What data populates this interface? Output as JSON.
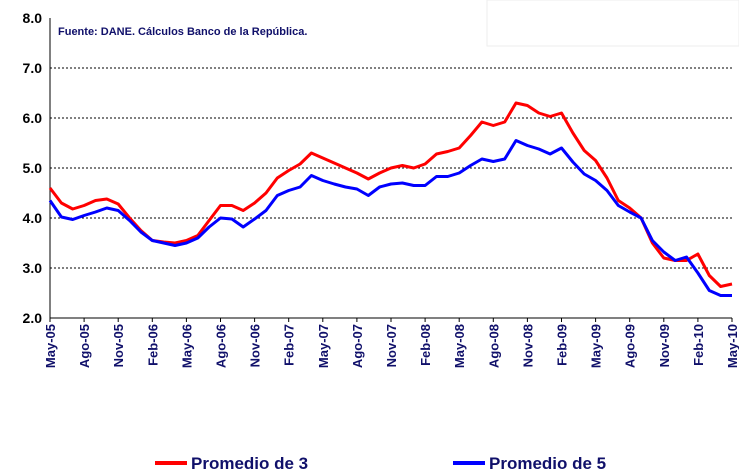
{
  "chart_data": {
    "type": "line",
    "annotation": "Fuente: DANE. Cálculos Banco de la República.",
    "categories": [
      "May-05",
      null,
      null,
      "Ago-05",
      null,
      null,
      "Nov-05",
      null,
      null,
      "Feb-06",
      null,
      null,
      "May-06",
      null,
      null,
      "Ago-06",
      null,
      null,
      "Nov-06",
      null,
      null,
      "Feb-07",
      null,
      null,
      "May-07",
      null,
      null,
      "Ago-07",
      null,
      null,
      "Nov-07",
      null,
      null,
      "Feb-08",
      null,
      null,
      "May-08",
      null,
      null,
      "Ago-08",
      null,
      null,
      "Nov-08",
      null,
      null,
      "Feb-09",
      null,
      null,
      "May-09",
      null,
      null,
      "Ago-09",
      null,
      null,
      "Nov-09",
      null,
      null,
      "Feb-10",
      null,
      null,
      "May-10"
    ],
    "series": [
      {
        "name": "Promedio de 3",
        "color": "#ff0000",
        "values": [
          4.6,
          4.3,
          4.18,
          4.25,
          4.35,
          4.38,
          4.28,
          4.0,
          3.75,
          3.55,
          3.52,
          3.5,
          3.55,
          3.65,
          3.95,
          4.25,
          4.25,
          4.15,
          4.3,
          4.5,
          4.8,
          4.95,
          5.08,
          5.3,
          5.2,
          5.1,
          5.0,
          4.9,
          4.78,
          4.9,
          5.0,
          5.05,
          5.0,
          5.08,
          5.28,
          5.33,
          5.4,
          5.65,
          5.92,
          5.85,
          5.92,
          6.3,
          6.25,
          6.1,
          6.03,
          6.1,
          5.7,
          5.35,
          5.15,
          4.8,
          4.35,
          4.2,
          4.0,
          3.5,
          3.2,
          3.15,
          3.15,
          3.28,
          2.85,
          2.63,
          2.68
        ]
      },
      {
        "name": "Promedio de 5",
        "color": "#0000ff",
        "values": [
          4.35,
          4.02,
          3.97,
          4.05,
          4.12,
          4.2,
          4.15,
          3.95,
          3.72,
          3.55,
          3.5,
          3.45,
          3.5,
          3.6,
          3.82,
          4.0,
          3.98,
          3.82,
          3.98,
          4.15,
          4.45,
          4.55,
          4.62,
          4.85,
          4.75,
          4.68,
          4.62,
          4.58,
          4.45,
          4.62,
          4.68,
          4.7,
          4.65,
          4.65,
          4.83,
          4.83,
          4.9,
          5.05,
          5.18,
          5.13,
          5.18,
          5.55,
          5.45,
          5.38,
          5.28,
          5.4,
          5.12,
          4.88,
          4.75,
          4.55,
          4.25,
          4.12,
          4.0,
          3.55,
          3.32,
          3.15,
          3.22,
          2.9,
          2.55,
          2.45,
          2.45
        ]
      }
    ],
    "ylim": [
      2,
      8
    ],
    "yticks": [
      {
        "value": 2,
        "label": "2.0"
      },
      {
        "value": 3,
        "label": "3.0"
      },
      {
        "value": 4,
        "label": "4.0"
      },
      {
        "value": 5,
        "label": "5.0"
      },
      {
        "value": 6,
        "label": "6.0"
      },
      {
        "value": 7,
        "label": "7.0"
      },
      {
        "value": 8,
        "label": "8.0"
      }
    ],
    "grid": true,
    "legend": "bottom"
  }
}
